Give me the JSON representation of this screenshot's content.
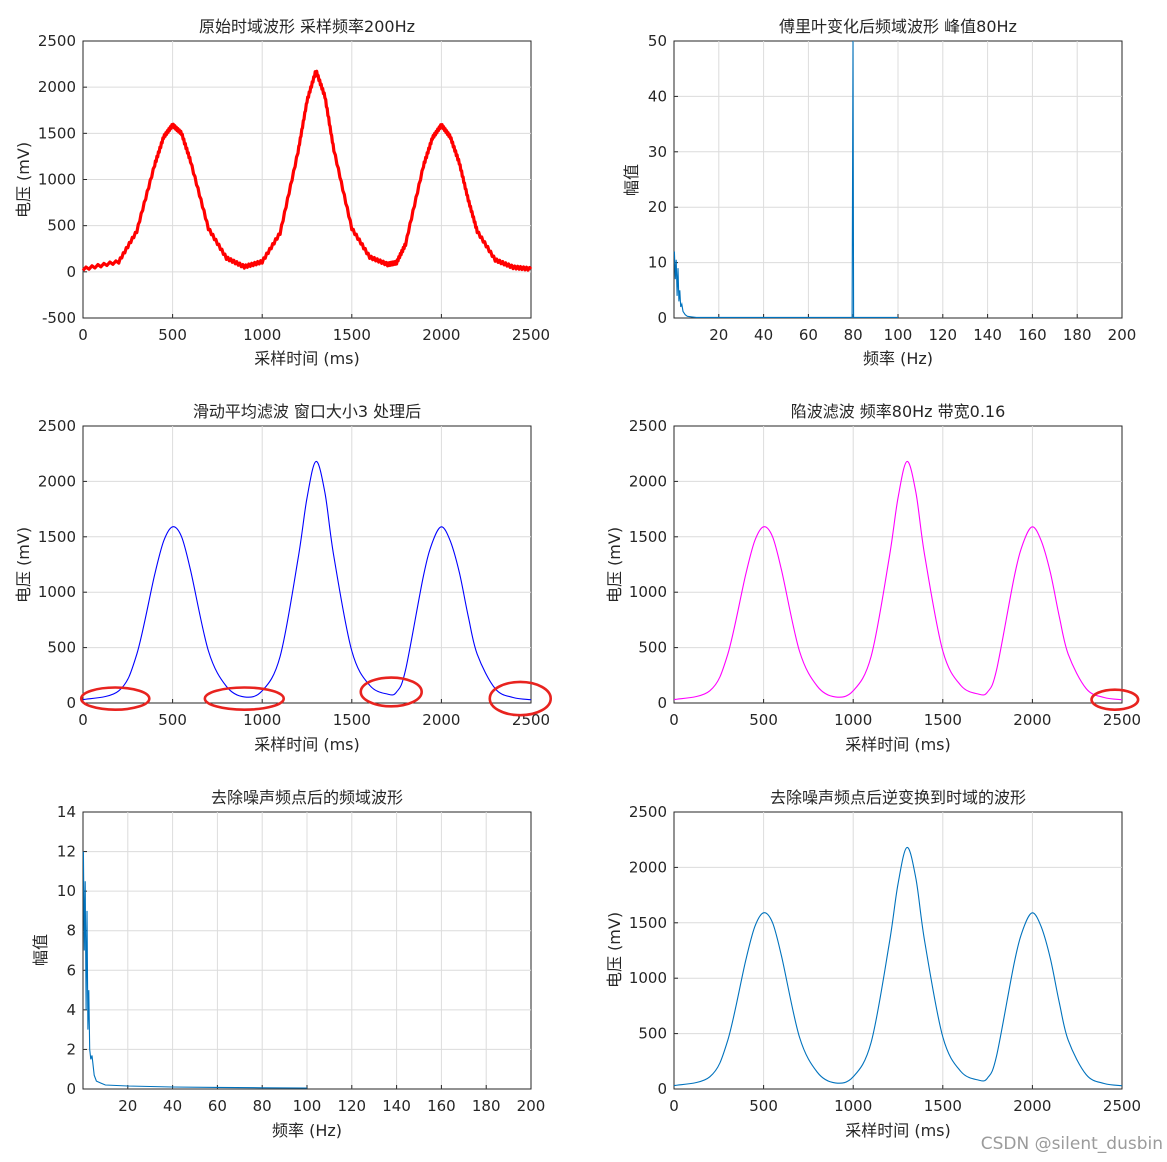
{
  "watermark": "CSDN @silent_dusbin",
  "chart_data": [
    {
      "id": "p1",
      "type": "line",
      "title": "原始时域波形 采样频率200Hz",
      "xlabel": "采样时间 (ms)",
      "ylabel": "电压 (mV)",
      "xlim": [
        0,
        2500
      ],
      "ylim": [
        -500,
        2500
      ],
      "grid": true,
      "color": "#ff0000",
      "xticks": [
        0,
        500,
        1000,
        1500,
        2000,
        2500
      ],
      "yticks": [
        -500,
        0,
        500,
        1000,
        1500,
        2000,
        2500
      ],
      "series": [
        {
          "noise_band_mV": 30,
          "x": [
            0,
            200,
            300,
            400,
            450,
            500,
            550,
            600,
            700,
            800,
            900,
            1000,
            1100,
            1200,
            1250,
            1300,
            1350,
            1400,
            1500,
            1600,
            1700,
            1750,
            1800,
            1900,
            1950,
            2000,
            2050,
            2100,
            2150,
            2200,
            2300,
            2400,
            2500
          ],
          "y": [
            30,
            110,
            440,
            1160,
            1460,
            1590,
            1500,
            1200,
            470,
            150,
            55,
            110,
            420,
            1300,
            1850,
            2180,
            1900,
            1320,
            470,
            160,
            80,
            100,
            300,
            1150,
            1450,
            1590,
            1460,
            1180,
            780,
            440,
            130,
            50,
            30
          ]
        }
      ]
    },
    {
      "id": "p2",
      "type": "line",
      "title": "傅里叶变化后频域波形 峰值80Hz",
      "xlabel": "频率 (Hz)",
      "ylabel": "幅值",
      "xlim": [
        0,
        200
      ],
      "ylim": [
        0,
        50
      ],
      "grid": true,
      "color": "#0072bd",
      "xticks": [
        20,
        40,
        60,
        80,
        100,
        120,
        140,
        160,
        180,
        200
      ],
      "yticks": [
        0,
        10,
        20,
        30,
        40,
        50
      ],
      "series": [
        {
          "x": [
            0.2,
            0.6,
            1,
            1.4,
            1.8,
            2.2,
            2.6,
            3,
            3.5,
            4,
            5,
            6,
            8,
            10,
            20,
            79.5,
            79.9,
            80.2,
            80.6,
            90,
            100
          ],
          "y": [
            12,
            7,
            10.5,
            4,
            9,
            3,
            5,
            2,
            2.5,
            1.2,
            0.6,
            0.3,
            0.2,
            0.1,
            0.1,
            0.1,
            50,
            0.1,
            0.1,
            0.1,
            0.1
          ]
        }
      ]
    },
    {
      "id": "p3",
      "type": "line",
      "title": "滑动平均滤波 窗口大小3 处理后",
      "xlabel": "采样时间 (ms)",
      "ylabel": "电压 (mV)",
      "xlim": [
        0,
        2500
      ],
      "ylim": [
        0,
        2500
      ],
      "grid": true,
      "color": "#0000ff",
      "xticks": [
        0,
        500,
        1000,
        1500,
        2000,
        2500
      ],
      "yticks": [
        0,
        500,
        1000,
        1500,
        2000,
        2500
      ],
      "series": [
        {
          "x": [
            0,
            200,
            300,
            400,
            450,
            500,
            550,
            600,
            700,
            800,
            900,
            1000,
            1100,
            1200,
            1250,
            1300,
            1350,
            1400,
            1500,
            1600,
            1700,
            1750,
            1800,
            1900,
            1950,
            2000,
            2050,
            2100,
            2150,
            2200,
            2300,
            2400,
            2500
          ],
          "y": [
            30,
            110,
            440,
            1160,
            1460,
            1590,
            1500,
            1200,
            470,
            150,
            55,
            110,
            420,
            1300,
            1850,
            2180,
            1900,
            1320,
            470,
            160,
            80,
            100,
            300,
            1150,
            1450,
            1590,
            1460,
            1180,
            780,
            440,
            130,
            50,
            30
          ]
        }
      ],
      "annotations": [
        {
          "type": "ellipse",
          "color": "#e8231f",
          "cx": 180,
          "cy": 40,
          "rx": 190,
          "ry": 100
        },
        {
          "type": "ellipse",
          "color": "#e8231f",
          "cx": 900,
          "cy": 40,
          "rx": 220,
          "ry": 100
        },
        {
          "type": "ellipse",
          "color": "#e8231f",
          "cx": 1720,
          "cy": 100,
          "rx": 170,
          "ry": 130
        },
        {
          "type": "ellipse",
          "color": "#e8231f",
          "cx": 2440,
          "cy": 40,
          "rx": 170,
          "ry": 150
        }
      ]
    },
    {
      "id": "p4",
      "type": "line",
      "title": "陷波滤波 频率80Hz 带宽0.16",
      "xlabel": "采样时间 (ms)",
      "ylabel": "电压 (mV)",
      "xlim": [
        0,
        2500
      ],
      "ylim": [
        0,
        2500
      ],
      "grid": true,
      "color": "#ff00ff",
      "xticks": [
        0,
        500,
        1000,
        1500,
        2000,
        2500
      ],
      "yticks": [
        0,
        500,
        1000,
        1500,
        2000,
        2500
      ],
      "series": [
        {
          "x": [
            0,
            200,
            300,
            400,
            450,
            500,
            550,
            600,
            700,
            800,
            900,
            1000,
            1100,
            1200,
            1250,
            1300,
            1350,
            1400,
            1500,
            1600,
            1700,
            1750,
            1800,
            1900,
            1950,
            2000,
            2050,
            2100,
            2150,
            2200,
            2300,
            2400,
            2500
          ],
          "y": [
            30,
            110,
            440,
            1160,
            1460,
            1590,
            1500,
            1200,
            470,
            150,
            55,
            110,
            420,
            1300,
            1850,
            2180,
            1900,
            1320,
            470,
            160,
            80,
            100,
            300,
            1150,
            1450,
            1590,
            1460,
            1180,
            780,
            440,
            130,
            50,
            30
          ]
        }
      ],
      "annotations": [
        {
          "type": "ellipse",
          "color": "#e8231f",
          "cx": 2460,
          "cy": 30,
          "rx": 130,
          "ry": 90
        }
      ]
    },
    {
      "id": "p5",
      "type": "line",
      "title": "去除噪声频点后的频域波形",
      "xlabel": "频率 (Hz)",
      "ylabel": "幅值",
      "xlim": [
        0,
        200
      ],
      "ylim": [
        0,
        14
      ],
      "grid": true,
      "color": "#0072bd",
      "xticks": [
        20,
        40,
        60,
        80,
        100,
        120,
        140,
        160,
        180,
        200
      ],
      "yticks": [
        0,
        2,
        4,
        6,
        8,
        10,
        12,
        14
      ],
      "series": [
        {
          "x": [
            0.2,
            0.6,
            1,
            1.4,
            1.8,
            2.2,
            2.6,
            3,
            3.5,
            4,
            5,
            6,
            8,
            10,
            20,
            40,
            60,
            80,
            100
          ],
          "y": [
            12,
            7,
            10.5,
            4,
            9,
            3,
            5,
            2,
            1.5,
            1.7,
            0.7,
            0.4,
            0.3,
            0.2,
            0.15,
            0.1,
            0.08,
            0.06,
            0.05
          ]
        }
      ]
    },
    {
      "id": "p6",
      "type": "line",
      "title": "去除噪声频点后逆变换到时域的波形",
      "xlabel": "采样时间 (ms)",
      "ylabel": "电压 (mV)",
      "xlim": [
        0,
        2500
      ],
      "ylim": [
        0,
        2500
      ],
      "grid": true,
      "color": "#0072bd",
      "xticks": [
        0,
        500,
        1000,
        1500,
        2000,
        2500
      ],
      "yticks": [
        0,
        500,
        1000,
        1500,
        2000,
        2500
      ],
      "series": [
        {
          "x": [
            0,
            200,
            300,
            400,
            450,
            500,
            550,
            600,
            700,
            800,
            900,
            1000,
            1100,
            1200,
            1250,
            1300,
            1350,
            1400,
            1500,
            1600,
            1700,
            1750,
            1800,
            1900,
            1950,
            2000,
            2050,
            2100,
            2150,
            2200,
            2300,
            2400,
            2500
          ],
          "y": [
            30,
            110,
            440,
            1160,
            1460,
            1590,
            1500,
            1200,
            470,
            150,
            55,
            110,
            420,
            1300,
            1850,
            2180,
            1900,
            1320,
            470,
            160,
            80,
            100,
            300,
            1150,
            1450,
            1590,
            1460,
            1180,
            780,
            440,
            130,
            50,
            30
          ]
        }
      ]
    }
  ]
}
